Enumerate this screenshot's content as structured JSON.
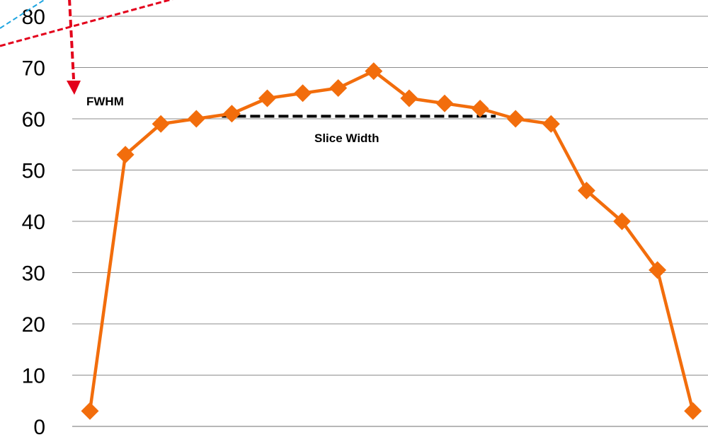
{
  "chart_data": {
    "type": "line",
    "title": "",
    "xlabel": "",
    "ylabel": "",
    "ylim": [
      0,
      80
    ],
    "yticks": [
      0,
      10,
      20,
      30,
      40,
      50,
      60,
      70,
      80
    ],
    "grid": true,
    "legend": "none",
    "x": [
      1,
      2,
      3,
      4,
      5,
      6,
      7,
      8,
      9,
      10,
      11,
      12,
      13,
      14,
      15,
      16,
      17,
      18
    ],
    "series": [
      {
        "values": [
          3,
          53,
          59,
          60,
          61,
          64,
          65,
          66,
          69.3,
          64,
          63,
          62,
          60,
          59,
          46,
          40,
          30.5,
          3
        ],
        "color": "#F26D0C"
      }
    ],
    "annotations": {
      "fwhm_label": "FWHM",
      "slice_width_label": "Slice Width",
      "slice_width_from_point": 5,
      "slice_width_to_point": 12,
      "slice_width_y": 60.5
    },
    "colors": {
      "series": "#F26D0C",
      "grid": "#8c8c8c",
      "fwhm_arrow": "#e3001b",
      "blue_dashed_line": "#1fa5e0",
      "slice_width_line": "#000000"
    }
  }
}
